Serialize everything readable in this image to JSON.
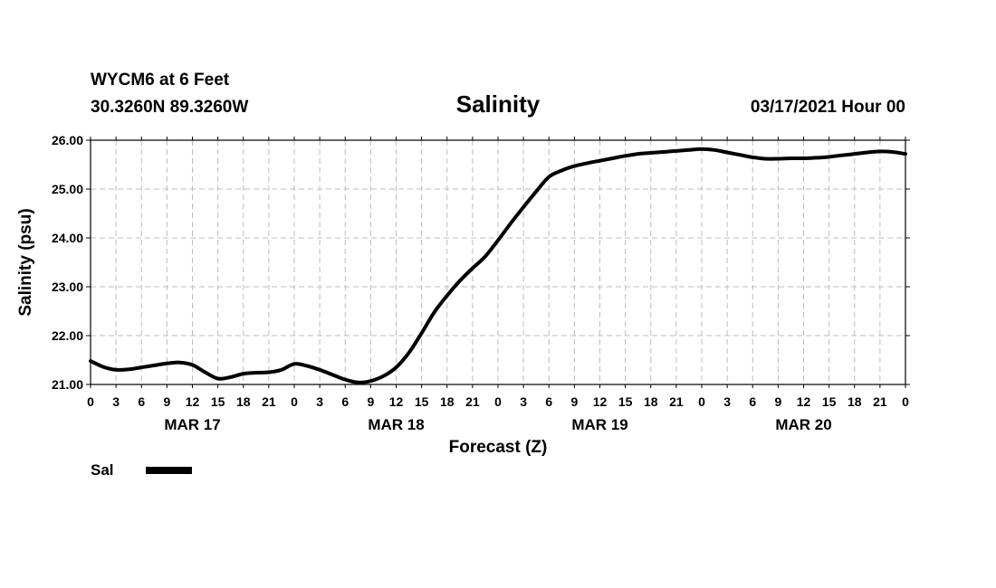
{
  "header": {
    "station": "WYCM6 at 6 Feet",
    "coords": "30.3260N 89.3260W",
    "title": "Salinity",
    "timestamp": "03/17/2021 Hour 00"
  },
  "chart_data": {
    "type": "line",
    "title": "Salinity",
    "xlabel": "Forecast (Z)",
    "ylabel": "Salinity (psu)",
    "ylim": [
      21.0,
      26.0
    ],
    "xlim_hours": [
      0,
      96
    ],
    "y_ticks": [
      "21.00",
      "22.00",
      "23.00",
      "24.00",
      "25.00",
      "26.00"
    ],
    "y_tick_values": [
      21.0,
      22.0,
      23.0,
      24.0,
      25.0,
      26.0
    ],
    "x_tick_labels": [
      "0",
      "3",
      "6",
      "9",
      "12",
      "15",
      "18",
      "21",
      "0",
      "3",
      "6",
      "9",
      "12",
      "15",
      "18",
      "21",
      "0",
      "3",
      "6",
      "9",
      "12",
      "15",
      "18",
      "21",
      "0",
      "3",
      "6",
      "9",
      "12",
      "15",
      "18",
      "21",
      "0"
    ],
    "day_labels": [
      "MAR 17",
      "MAR 18",
      "MAR 19",
      "MAR 20"
    ],
    "day_label_hours": [
      12,
      36,
      60,
      84
    ],
    "grid": true,
    "legend": {
      "placement": "bottom-left",
      "entries": [
        {
          "name": "Sal",
          "color": "#000000"
        }
      ]
    },
    "series": [
      {
        "name": "Sal",
        "x": [
          0,
          1.5,
          3,
          4.5,
          6,
          7.5,
          9,
          10.5,
          12,
          13.5,
          15,
          16.5,
          18,
          19.5,
          21,
          22.5,
          24,
          25.5,
          27,
          28.5,
          30,
          31.5,
          33,
          34.5,
          36,
          37.5,
          39,
          40.5,
          42,
          43.5,
          45,
          46.5,
          48,
          49.5,
          51,
          52.5,
          54,
          55.5,
          57,
          58.5,
          60,
          61.5,
          63,
          64.5,
          66,
          67.5,
          69,
          70.5,
          72,
          73.5,
          75,
          76.5,
          78,
          79.5,
          81,
          82.5,
          84,
          85.5,
          87,
          88.5,
          90,
          91.5,
          93,
          94.5,
          96
        ],
        "values": [
          21.48,
          21.36,
          21.3,
          21.31,
          21.35,
          21.39,
          21.43,
          21.45,
          21.4,
          21.25,
          21.12,
          21.15,
          21.22,
          21.24,
          21.25,
          21.3,
          21.42,
          21.38,
          21.3,
          21.2,
          21.1,
          21.04,
          21.07,
          21.17,
          21.35,
          21.65,
          22.05,
          22.48,
          22.82,
          23.12,
          23.38,
          23.62,
          23.95,
          24.3,
          24.63,
          24.95,
          25.25,
          25.38,
          25.47,
          25.53,
          25.58,
          25.63,
          25.68,
          25.72,
          25.74,
          25.76,
          25.78,
          25.8,
          25.82,
          25.8,
          25.75,
          25.7,
          25.65,
          25.62,
          25.62,
          25.63,
          25.63,
          25.64,
          25.66,
          25.69,
          25.72,
          25.75,
          25.77,
          25.76,
          25.72
        ]
      }
    ]
  }
}
